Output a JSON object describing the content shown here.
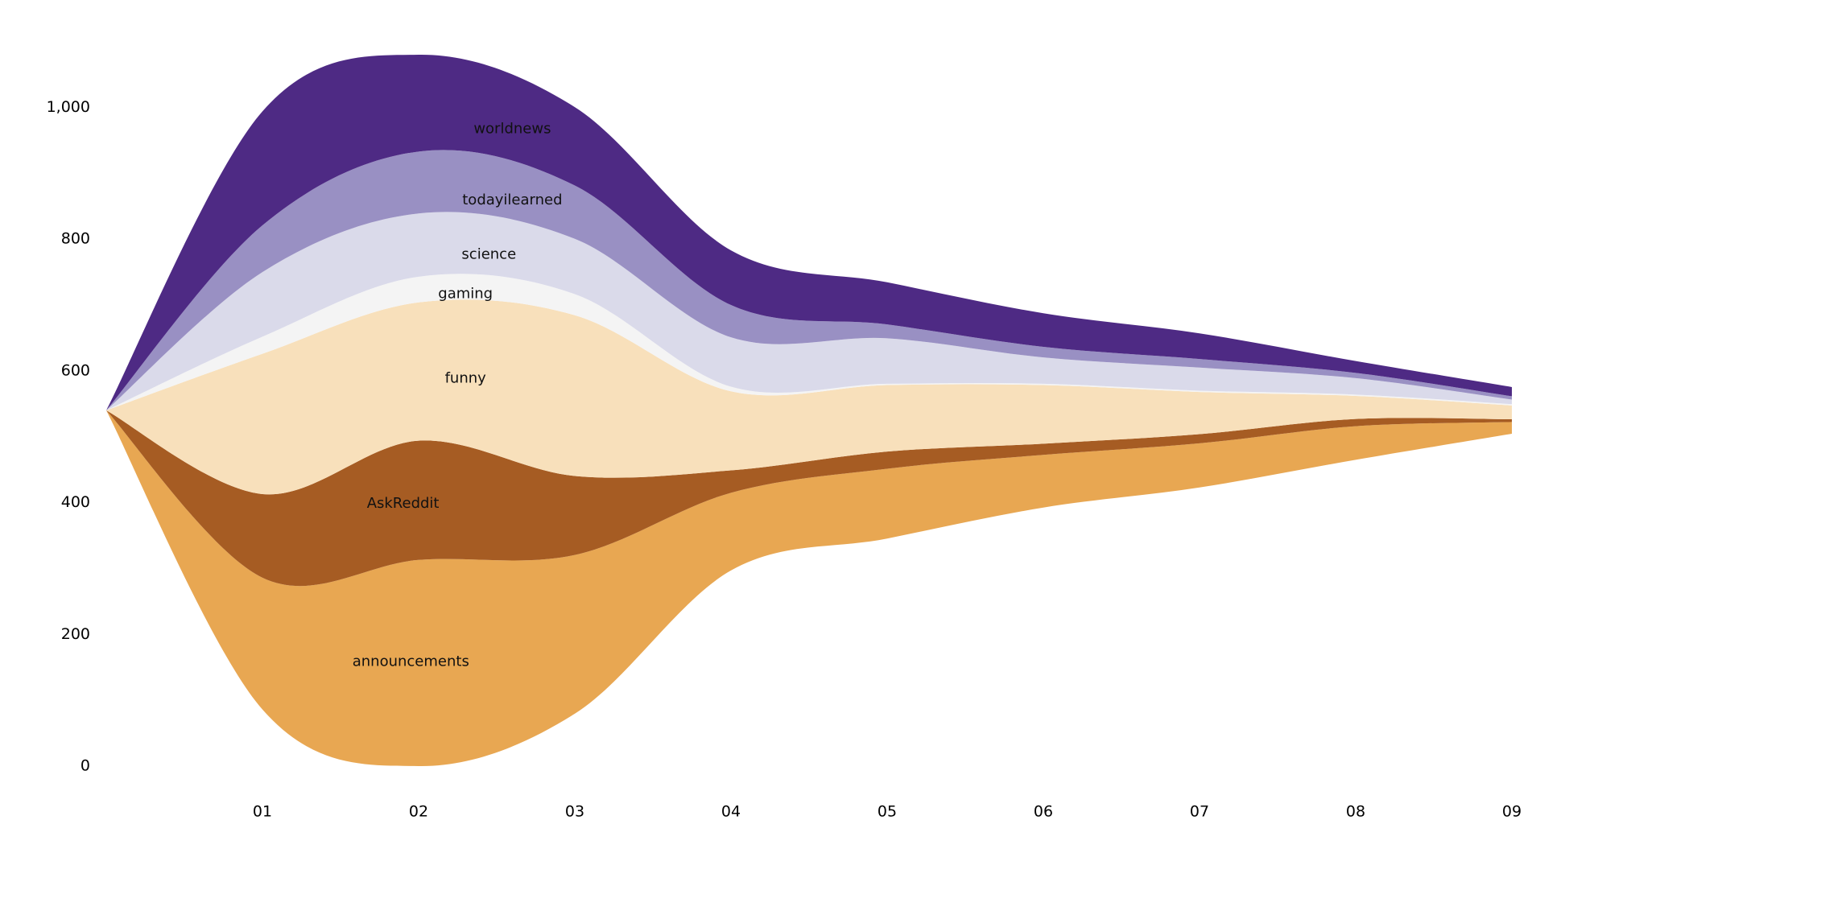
{
  "chart_data": {
    "type": "streamgraph",
    "categories": [
      null,
      "01",
      "02",
      "03",
      "04",
      "05",
      "06",
      "07",
      "08",
      "09"
    ],
    "series": [
      {
        "name": "announcements",
        "color": "#e8a752",
        "values": [
          0,
          200,
          313,
          241,
          118,
          106,
          80,
          67,
          51,
          18
        ]
      },
      {
        "name": "AskReddit",
        "color": "#a65c23",
        "values": [
          0,
          127,
          181,
          120,
          34,
          26,
          17,
          14,
          11,
          4
        ]
      },
      {
        "name": "funny",
        "color": "#f8e0bb",
        "values": [
          0,
          213,
          210,
          244,
          120,
          101,
          89,
          64,
          35,
          21
        ]
      },
      {
        "name": "gaming",
        "color": "#f4f4f4",
        "values": [
          0,
          26,
          39,
          32,
          7,
          2,
          2,
          2,
          2,
          2
        ]
      },
      {
        "name": "science",
        "color": "#dadaea",
        "values": [
          0,
          98,
          96,
          84,
          75,
          69,
          40,
          35,
          25,
          7
        ]
      },
      {
        "name": "todayilearned",
        "color": "#9990c3",
        "values": [
          0,
          71,
          94,
          81,
          49,
          21,
          16,
          13,
          8,
          5
        ]
      },
      {
        "name": "worldnews",
        "color": "#4e2a84",
        "values": [
          0,
          173,
          147,
          119,
          83,
          64,
          51,
          39,
          18,
          14
        ]
      }
    ],
    "ylim": [
      0,
      1080
    ],
    "yticks": [
      0,
      200,
      400,
      600,
      800,
      {
        "value": 1000,
        "label": "1,000"
      }
    ]
  }
}
